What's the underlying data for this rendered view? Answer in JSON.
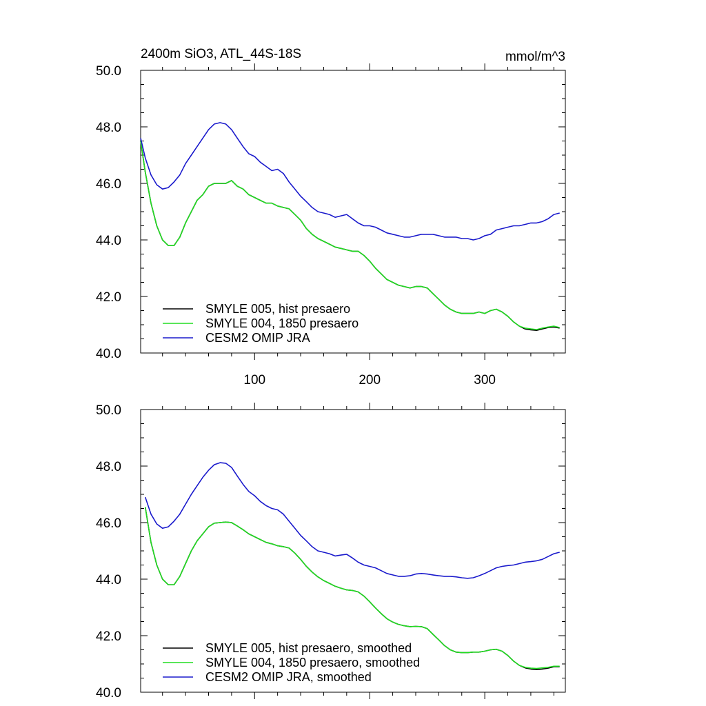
{
  "page": {
    "title_left": "2400m SiO3, ATL_44S-18S",
    "title_right": "mmol/m^3"
  },
  "colors": {
    "black": "#000000",
    "green": "#22dd22",
    "blue": "#1a1acc"
  },
  "chart_data": [
    {
      "type": "line",
      "xlim": [
        1,
        370
      ],
      "ylim": [
        40,
        50
      ],
      "x_ticks": [
        100,
        200,
        300
      ],
      "x_tick_labels": [
        "100",
        "200",
        "300"
      ],
      "y_ticks": [
        40,
        42,
        44,
        46,
        48,
        50
      ],
      "y_tick_labels": [
        "40.0",
        "42.0",
        "44.0",
        "46.0",
        "48.0",
        "50.0"
      ],
      "grid": false,
      "legend_position": "bottom-left",
      "series": [
        {
          "name": "SMYLE 005, hist presaero",
          "color": "#000000",
          "x": [
            1,
            5,
            10,
            15,
            20,
            25,
            30,
            35,
            40,
            45,
            50,
            55,
            60,
            65,
            70,
            75,
            80,
            85,
            90,
            95,
            100,
            105,
            110,
            115,
            120,
            125,
            130,
            135,
            140,
            145,
            150,
            155,
            160,
            165,
            170,
            175,
            180,
            185,
            190,
            195,
            200,
            205,
            210,
            215,
            220,
            225,
            230,
            235,
            240,
            245,
            250,
            255,
            260,
            265,
            270,
            275,
            280,
            285,
            290,
            295,
            300,
            305,
            310,
            315,
            320,
            325,
            330,
            335,
            340,
            345,
            350,
            355,
            360,
            365
          ],
          "y": [
            47.5,
            46.4,
            45.3,
            44.5,
            44.0,
            43.8,
            43.8,
            44.1,
            44.6,
            45.0,
            45.4,
            45.6,
            45.9,
            46.0,
            46.0,
            46.0,
            46.1,
            45.9,
            45.8,
            45.6,
            45.5,
            45.4,
            45.3,
            45.3,
            45.2,
            45.15,
            45.1,
            44.9,
            44.7,
            44.4,
            44.2,
            44.05,
            43.95,
            43.85,
            43.75,
            43.7,
            43.65,
            43.6,
            43.6,
            43.45,
            43.25,
            43.0,
            42.8,
            42.6,
            42.5,
            42.4,
            42.35,
            42.3,
            42.35,
            42.35,
            42.3,
            42.1,
            41.9,
            41.7,
            41.55,
            41.45,
            41.4,
            41.4,
            41.4,
            41.45,
            41.4,
            41.5,
            41.55,
            41.45,
            41.3,
            41.1,
            40.95,
            40.85,
            40.82,
            40.8,
            40.85,
            40.9,
            40.92,
            40.88
          ]
        },
        {
          "name": "SMYLE 004, 1850 presaero",
          "color": "#22dd22",
          "x": [
            1,
            5,
            10,
            15,
            20,
            25,
            30,
            35,
            40,
            45,
            50,
            55,
            60,
            65,
            70,
            75,
            80,
            85,
            90,
            95,
            100,
            105,
            110,
            115,
            120,
            125,
            130,
            135,
            140,
            145,
            150,
            155,
            160,
            165,
            170,
            175,
            180,
            185,
            190,
            195,
            200,
            205,
            210,
            215,
            220,
            225,
            230,
            235,
            240,
            245,
            250,
            255,
            260,
            265,
            270,
            275,
            280,
            285,
            290,
            295,
            300,
            305,
            310,
            315,
            320,
            325,
            330,
            335,
            340,
            345,
            350,
            355,
            360,
            365
          ],
          "y": [
            47.5,
            46.4,
            45.3,
            44.5,
            44.0,
            43.8,
            43.8,
            44.1,
            44.6,
            45.0,
            45.4,
            45.6,
            45.9,
            46.0,
            46.0,
            46.0,
            46.1,
            45.9,
            45.8,
            45.6,
            45.5,
            45.4,
            45.3,
            45.3,
            45.2,
            45.15,
            45.1,
            44.9,
            44.7,
            44.4,
            44.2,
            44.05,
            43.95,
            43.85,
            43.75,
            43.7,
            43.65,
            43.6,
            43.6,
            43.45,
            43.25,
            43.0,
            42.8,
            42.6,
            42.5,
            42.4,
            42.35,
            42.3,
            42.35,
            42.35,
            42.3,
            42.1,
            41.9,
            41.7,
            41.55,
            41.45,
            41.4,
            41.4,
            41.4,
            41.45,
            41.4,
            41.5,
            41.55,
            41.45,
            41.3,
            41.1,
            40.95,
            40.88,
            40.85,
            40.83,
            40.88,
            40.92,
            40.95,
            40.9
          ]
        },
        {
          "name": "CESM2 OMIP JRA",
          "color": "#1a1acc",
          "x": [
            1,
            5,
            10,
            15,
            20,
            25,
            30,
            35,
            40,
            45,
            50,
            55,
            60,
            65,
            70,
            75,
            80,
            85,
            90,
            95,
            100,
            105,
            110,
            115,
            120,
            125,
            130,
            135,
            140,
            145,
            150,
            155,
            160,
            165,
            170,
            175,
            180,
            185,
            190,
            195,
            200,
            205,
            210,
            215,
            220,
            225,
            230,
            235,
            240,
            245,
            250,
            255,
            260,
            265,
            270,
            275,
            280,
            285,
            290,
            295,
            300,
            305,
            310,
            315,
            320,
            325,
            330,
            335,
            340,
            345,
            350,
            355,
            360,
            365
          ],
          "y": [
            47.6,
            46.9,
            46.3,
            45.95,
            45.8,
            45.85,
            46.05,
            46.3,
            46.7,
            47.0,
            47.3,
            47.6,
            47.9,
            48.1,
            48.15,
            48.1,
            47.9,
            47.6,
            47.3,
            47.05,
            46.95,
            46.75,
            46.6,
            46.45,
            46.5,
            46.35,
            46.05,
            45.8,
            45.55,
            45.35,
            45.15,
            45.0,
            44.95,
            44.9,
            44.8,
            44.85,
            44.9,
            44.75,
            44.6,
            44.5,
            44.5,
            44.45,
            44.35,
            44.25,
            44.2,
            44.15,
            44.1,
            44.1,
            44.15,
            44.2,
            44.2,
            44.2,
            44.15,
            44.1,
            44.1,
            44.1,
            44.05,
            44.05,
            44.0,
            44.05,
            44.15,
            44.2,
            44.35,
            44.4,
            44.45,
            44.5,
            44.5,
            44.55,
            44.6,
            44.6,
            44.65,
            44.75,
            44.9,
            44.95
          ]
        }
      ]
    },
    {
      "type": "line",
      "xlim": [
        1,
        370
      ],
      "ylim": [
        40,
        50
      ],
      "x_ticks": [
        100,
        200,
        300
      ],
      "x_tick_labels": [
        "",
        "",
        ""
      ],
      "y_ticks": [
        40,
        42,
        44,
        46,
        48,
        50
      ],
      "y_tick_labels": [
        "40.0",
        "42.0",
        "44.0",
        "46.0",
        "48.0",
        "50.0"
      ],
      "grid": false,
      "legend_position": "bottom-left",
      "series": [
        {
          "name": "SMYLE 005, hist presaero, smoothed",
          "color": "#000000",
          "x": [
            5,
            10,
            15,
            20,
            25,
            30,
            35,
            40,
            45,
            50,
            55,
            60,
            65,
            70,
            75,
            80,
            85,
            90,
            95,
            100,
            105,
            110,
            115,
            120,
            125,
            130,
            135,
            140,
            145,
            150,
            155,
            160,
            165,
            170,
            175,
            180,
            185,
            190,
            195,
            200,
            205,
            210,
            215,
            220,
            225,
            230,
            235,
            240,
            245,
            250,
            255,
            260,
            265,
            270,
            275,
            280,
            285,
            290,
            295,
            300,
            305,
            310,
            315,
            320,
            325,
            330,
            335,
            340,
            345,
            350,
            355,
            360,
            365
          ],
          "y": [
            46.55,
            45.3,
            44.5,
            44.0,
            43.8,
            43.8,
            44.1,
            44.55,
            45.0,
            45.35,
            45.6,
            45.85,
            45.98,
            46.0,
            46.02,
            46.0,
            45.88,
            45.75,
            45.6,
            45.5,
            45.4,
            45.3,
            45.25,
            45.18,
            45.15,
            45.1,
            44.92,
            44.7,
            44.45,
            44.25,
            44.08,
            43.95,
            43.85,
            43.75,
            43.68,
            43.62,
            43.6,
            43.55,
            43.4,
            43.2,
            42.98,
            42.78,
            42.6,
            42.48,
            42.4,
            42.35,
            42.32,
            42.33,
            42.32,
            42.25,
            42.05,
            41.85,
            41.65,
            41.5,
            41.42,
            41.4,
            41.4,
            41.42,
            41.42,
            41.45,
            41.5,
            41.52,
            41.45,
            41.3,
            41.1,
            40.95,
            40.86,
            40.82,
            40.8,
            40.82,
            40.85,
            40.9,
            40.9
          ]
        },
        {
          "name": "SMYLE 004, 1850 presaero, smoothed",
          "color": "#22dd22",
          "x": [
            5,
            10,
            15,
            20,
            25,
            30,
            35,
            40,
            45,
            50,
            55,
            60,
            65,
            70,
            75,
            80,
            85,
            90,
            95,
            100,
            105,
            110,
            115,
            120,
            125,
            130,
            135,
            140,
            145,
            150,
            155,
            160,
            165,
            170,
            175,
            180,
            185,
            190,
            195,
            200,
            205,
            210,
            215,
            220,
            225,
            230,
            235,
            240,
            245,
            250,
            255,
            260,
            265,
            270,
            275,
            280,
            285,
            290,
            295,
            300,
            305,
            310,
            315,
            320,
            325,
            330,
            335,
            340,
            345,
            350,
            355,
            360,
            365
          ],
          "y": [
            46.55,
            45.3,
            44.5,
            44.0,
            43.8,
            43.8,
            44.1,
            44.55,
            45.0,
            45.35,
            45.6,
            45.85,
            45.98,
            46.0,
            46.02,
            46.0,
            45.88,
            45.75,
            45.6,
            45.5,
            45.4,
            45.3,
            45.25,
            45.18,
            45.15,
            45.1,
            44.92,
            44.7,
            44.45,
            44.25,
            44.08,
            43.95,
            43.85,
            43.75,
            43.68,
            43.62,
            43.6,
            43.55,
            43.4,
            43.2,
            42.98,
            42.78,
            42.6,
            42.48,
            42.4,
            42.35,
            42.32,
            42.33,
            42.32,
            42.25,
            42.05,
            41.85,
            41.65,
            41.5,
            41.42,
            41.4,
            41.4,
            41.42,
            41.42,
            41.45,
            41.5,
            41.52,
            41.45,
            41.3,
            41.1,
            40.95,
            40.88,
            40.85,
            40.84,
            40.86,
            40.88,
            40.92,
            40.92
          ]
        },
        {
          "name": "CESM2 OMIP JRA, smoothed",
          "color": "#1a1acc",
          "x": [
            5,
            10,
            15,
            20,
            25,
            30,
            35,
            40,
            45,
            50,
            55,
            60,
            65,
            70,
            75,
            80,
            85,
            90,
            95,
            100,
            105,
            110,
            115,
            120,
            125,
            130,
            135,
            140,
            145,
            150,
            155,
            160,
            165,
            170,
            175,
            180,
            185,
            190,
            195,
            200,
            205,
            210,
            215,
            220,
            225,
            230,
            235,
            240,
            245,
            250,
            255,
            260,
            265,
            270,
            275,
            280,
            285,
            290,
            295,
            300,
            305,
            310,
            315,
            320,
            325,
            330,
            335,
            340,
            345,
            350,
            355,
            360,
            365
          ],
          "y": [
            46.9,
            46.3,
            45.95,
            45.8,
            45.85,
            46.05,
            46.3,
            46.65,
            47.0,
            47.3,
            47.6,
            47.85,
            48.05,
            48.12,
            48.1,
            47.95,
            47.65,
            47.35,
            47.1,
            46.95,
            46.75,
            46.6,
            46.5,
            46.45,
            46.3,
            46.05,
            45.8,
            45.55,
            45.35,
            45.15,
            45.0,
            44.95,
            44.9,
            44.82,
            44.85,
            44.88,
            44.75,
            44.6,
            44.5,
            44.45,
            44.4,
            44.3,
            44.2,
            44.15,
            44.1,
            44.1,
            44.12,
            44.18,
            44.2,
            44.18,
            44.15,
            44.12,
            44.1,
            44.1,
            44.08,
            44.05,
            44.03,
            44.05,
            44.12,
            44.2,
            44.3,
            44.4,
            44.45,
            44.48,
            44.5,
            44.55,
            44.6,
            44.62,
            44.65,
            44.7,
            44.8,
            44.9,
            44.95
          ]
        }
      ]
    }
  ]
}
